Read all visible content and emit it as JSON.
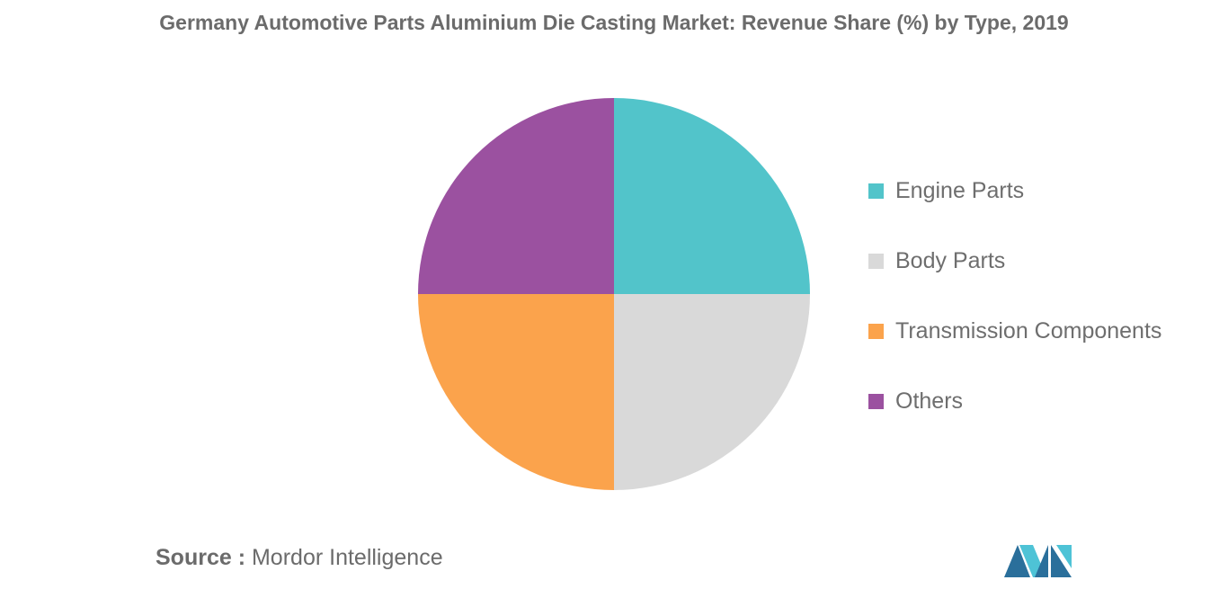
{
  "chart_data": {
    "type": "pie",
    "title": "Germany Automotive Parts Aluminium Die Casting Market: Revenue Share (%) by Type, 2019",
    "categories": [
      "Engine Parts",
      "Body Parts",
      "Transmission Components",
      "Others"
    ],
    "values": [
      25,
      25,
      25,
      25
    ],
    "colors": [
      "#52c4ca",
      "#d9d9d9",
      "#fba34c",
      "#9b51a0"
    ],
    "legend_position": "right",
    "start_angle": "12 o'clock, clockwise"
  },
  "source": {
    "label": "Source :",
    "text": "Mordor Intelligence"
  },
  "logo": {
    "icon": "mordor-intelligence-logo",
    "colors": [
      "#2a6f9b",
      "#4ec3d6"
    ]
  }
}
